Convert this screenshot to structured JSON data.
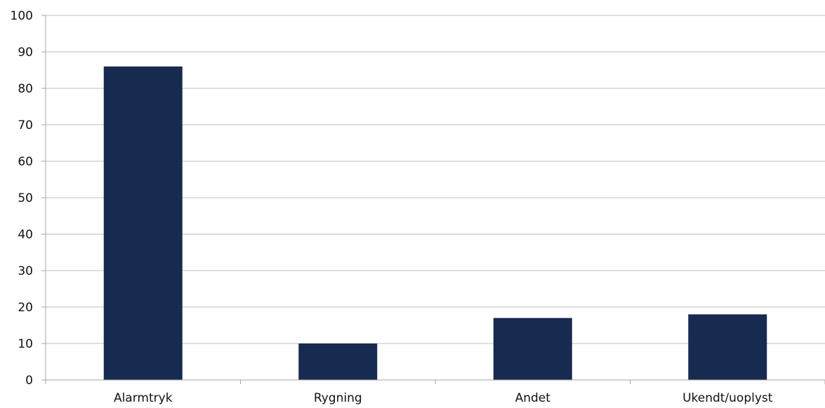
{
  "chart_data": {
    "type": "bar",
    "categories": [
      "Alarmtryk",
      "Rygning",
      "Andet",
      "Ukendt/uoplyst"
    ],
    "values": [
      86,
      10,
      17,
      18
    ],
    "ylim": [
      0,
      100
    ],
    "yticks": [
      0,
      10,
      20,
      30,
      40,
      50,
      60,
      70,
      80,
      90,
      100
    ],
    "grid": true,
    "legend": "none",
    "colors": {
      "bar": "#172B50",
      "grid": "#BFBFBF",
      "axis": "#A6A6A6"
    }
  }
}
